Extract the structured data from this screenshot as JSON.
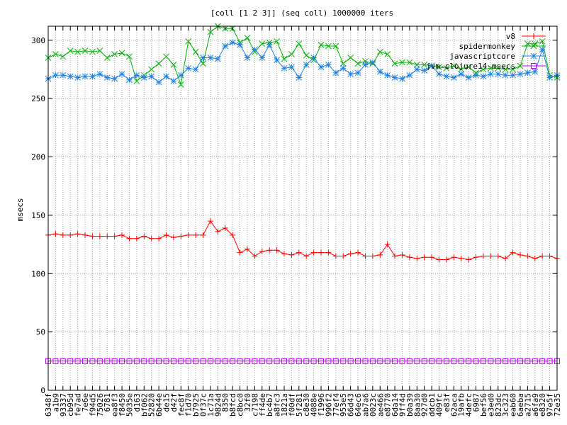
{
  "chart_data": {
    "type": "line",
    "title": "[coll [1 2 3]] (seq coll) 1000000 iters",
    "xlabel": "",
    "ylabel": "msecs",
    "ylim": [
      0,
      312
    ],
    "yticks": [
      0,
      50,
      100,
      150,
      200,
      250,
      300
    ],
    "grid": true,
    "legend_position": "top-right",
    "categories": [
      "6348f",
      "a1b9",
      "93337",
      "cb95d",
      "fe7ad",
      "7e6e",
      "f94d5",
      "75026",
      "6781",
      "ea8f3",
      "f8450",
      "5035e",
      "d163",
      "bf062",
      "52820",
      "6b44e",
      "de15",
      "d42f",
      "fec8f",
      "f1d70",
      "b7925",
      "0f37c",
      "1c71a",
      "9824d",
      "8350",
      "b8fcd",
      "c8bc0",
      "32f0",
      "c7198",
      "ff4de",
      "bc4b7",
      "a8fc3",
      "1821a",
      "f00df",
      "5f281",
      "c8e30",
      "4088e",
      "f1996",
      "996f2",
      "77ef4",
      "953e5",
      "66d43",
      "64ec6",
      "ab7a6",
      "0023c",
      "ae466",
      "e8770",
      "6da14",
      "9ff4d",
      "b0a39",
      "8aa30",
      "927d0",
      "ddcb1",
      "409fc",
      "e83f",
      "62aca",
      "19afb",
      "4defc",
      "6987",
      "bef56",
      "e3ed0",
      "823dc",
      "3c323",
      "eab60",
      "6aeba",
      "a2715",
      "a6fa9",
      "e8320",
      "97e5f",
      "72e35"
    ],
    "series": [
      {
        "name": "v8",
        "color": "#ff0000",
        "marker": "plus",
        "values": [
          133,
          134,
          133,
          133,
          134,
          133,
          132,
          132,
          132,
          132,
          133,
          130,
          130,
          132,
          130,
          130,
          133,
          131,
          132,
          133,
          133,
          133,
          145,
          136,
          139,
          133,
          118,
          121,
          115,
          119,
          120,
          120,
          117,
          116,
          118,
          115,
          118,
          118,
          118,
          115,
          115,
          117,
          118,
          115,
          115,
          116,
          125,
          115,
          116,
          114,
          113,
          114,
          114,
          112,
          112,
          114,
          113,
          112,
          114,
          115,
          115,
          115,
          113,
          118,
          116,
          115,
          113,
          115,
          115,
          113
        ]
      },
      {
        "name": "spidermonkey",
        "color": "#00b000",
        "marker": "x",
        "values": [
          285,
          288,
          286,
          291,
          290,
          291,
          290,
          291,
          285,
          288,
          289,
          286,
          265,
          270,
          275,
          280,
          286,
          279,
          262,
          299,
          290,
          280,
          307,
          312,
          310,
          310,
          298,
          302,
          290,
          297,
          298,
          299,
          284,
          288,
          297,
          287,
          283,
          296,
          295,
          295,
          280,
          285,
          280,
          282,
          280,
          290,
          288,
          280,
          281,
          281,
          279,
          279,
          278,
          277,
          276,
          278,
          275,
          277,
          272,
          275,
          276,
          276,
          275,
          275,
          278,
          297,
          297,
          299,
          270,
          268
        ]
      },
      {
        "name": "javascriptcore",
        "color": "#2080e0",
        "marker": "star",
        "values": [
          267,
          270,
          270,
          269,
          268,
          269,
          269,
          271,
          268,
          267,
          271,
          266,
          270,
          268,
          269,
          264,
          269,
          265,
          270,
          276,
          275,
          285,
          285,
          284,
          295,
          298,
          296,
          285,
          292,
          285,
          296,
          283,
          276,
          277,
          268,
          279,
          285,
          277,
          279,
          272,
          276,
          271,
          272,
          279,
          281,
          273,
          270,
          268,
          267,
          270,
          275,
          274,
          278,
          271,
          269,
          268,
          271,
          268,
          270,
          269,
          271,
          271,
          270,
          270,
          271,
          272,
          273,
          292,
          268,
          270
        ]
      },
      {
        "name": "jvm-clojure14-msecs",
        "color": "#c000ff",
        "marker": "square",
        "values": [
          25,
          25,
          25,
          25,
          25,
          25,
          25,
          25,
          25,
          25,
          25,
          25,
          25,
          25,
          25,
          25,
          25,
          25,
          25,
          25,
          25,
          25,
          25,
          25,
          25,
          25,
          25,
          25,
          25,
          25,
          25,
          25,
          25,
          25,
          25,
          25,
          25,
          25,
          25,
          25,
          25,
          25,
          25,
          25,
          25,
          25,
          25,
          25,
          25,
          25,
          25,
          25,
          25,
          25,
          25,
          25,
          25,
          25,
          25,
          25,
          25,
          25,
          25,
          25,
          25,
          25,
          25,
          25,
          25,
          25
        ]
      }
    ]
  }
}
